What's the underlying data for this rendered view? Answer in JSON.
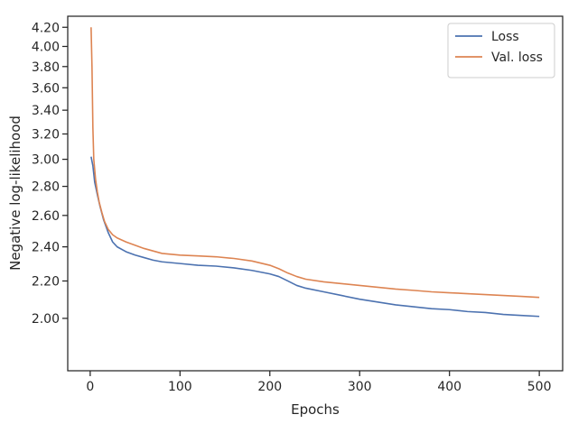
{
  "chart_data": {
    "type": "line",
    "title": "",
    "xlabel": "Epochs",
    "ylabel": "Negative log-likelihood",
    "xlim": [
      -25,
      526
    ],
    "ylim": [
      1.75,
      4.32
    ],
    "y_scale": "log",
    "grid": false,
    "legend_position": "top-right",
    "x_ticks": [
      0,
      100,
      200,
      300,
      400,
      500
    ],
    "x_tick_labels": [
      "0",
      "100",
      "200",
      "300",
      "400",
      "500"
    ],
    "y_ticks": [
      2.0,
      2.2,
      2.4,
      2.6,
      2.8,
      3.0,
      3.2,
      3.4,
      3.6,
      3.8,
      4.0,
      4.2
    ],
    "y_tick_labels": [
      "2.00",
      "2.20",
      "2.40",
      "2.60",
      "2.80",
      "3.00",
      "3.20",
      "3.40",
      "3.60",
      "3.80",
      "4.00",
      "4.20"
    ],
    "series": [
      {
        "name": "Loss",
        "color": "#4c72b0",
        "x": [
          1,
          3,
          5,
          8,
          11,
          15,
          20,
          25,
          30,
          40,
          50,
          60,
          70,
          80,
          100,
          120,
          140,
          160,
          180,
          200,
          210,
          220,
          230,
          240,
          260,
          280,
          300,
          320,
          340,
          360,
          380,
          400,
          420,
          440,
          460,
          480,
          500
        ],
        "y": [
          3.02,
          2.95,
          2.83,
          2.74,
          2.66,
          2.57,
          2.49,
          2.43,
          2.4,
          2.37,
          2.35,
          2.335,
          2.32,
          2.31,
          2.3,
          2.29,
          2.285,
          2.275,
          2.26,
          2.24,
          2.225,
          2.2,
          2.175,
          2.16,
          2.14,
          2.12,
          2.1,
          2.085,
          2.07,
          2.06,
          2.05,
          2.045,
          2.035,
          2.03,
          2.02,
          2.015,
          2.01
        ]
      },
      {
        "name": "Val. loss",
        "color": "#dd8452",
        "x": [
          1,
          2,
          3,
          4,
          6,
          8,
          10,
          13,
          16,
          20,
          25,
          30,
          40,
          50,
          60,
          70,
          80,
          100,
          120,
          140,
          160,
          180,
          200,
          210,
          220,
          230,
          240,
          260,
          280,
          300,
          320,
          340,
          360,
          380,
          400,
          420,
          440,
          460,
          480,
          500
        ],
        "y": [
          4.2,
          3.8,
          3.25,
          3.0,
          2.85,
          2.76,
          2.69,
          2.62,
          2.56,
          2.51,
          2.475,
          2.455,
          2.43,
          2.41,
          2.39,
          2.375,
          2.36,
          2.35,
          2.345,
          2.34,
          2.33,
          2.315,
          2.29,
          2.27,
          2.245,
          2.225,
          2.21,
          2.195,
          2.185,
          2.175,
          2.165,
          2.155,
          2.148,
          2.14,
          2.135,
          2.13,
          2.125,
          2.12,
          2.115,
          2.11
        ]
      }
    ]
  }
}
